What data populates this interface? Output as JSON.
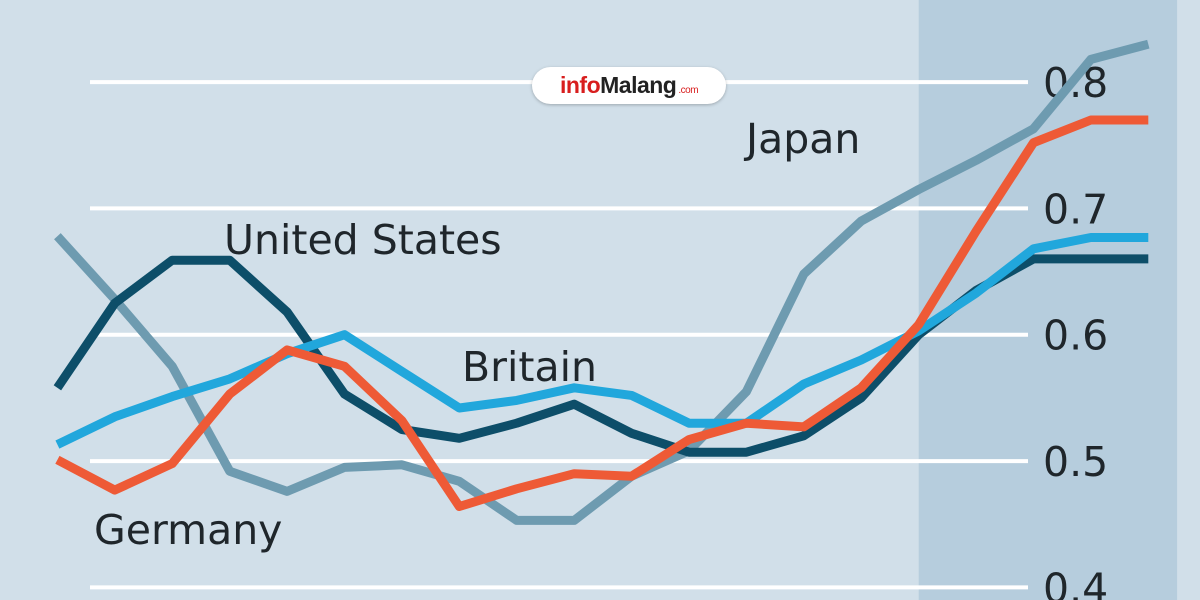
{
  "chart_data": {
    "type": "line",
    "x": [
      1,
      2,
      3,
      4,
      5,
      6,
      7,
      8,
      9,
      10,
      11,
      12,
      13,
      14,
      15,
      16,
      17,
      18,
      19,
      20
    ],
    "xlim": [
      0,
      20.9
    ],
    "ylim": [
      0.39,
      0.865
    ],
    "yticks": [
      0.4,
      0.5,
      0.6,
      0.7,
      0.8
    ],
    "ytick_labels": [
      "0.4",
      "0.5",
      "0.6",
      "0.7",
      "0.8"
    ],
    "grid": "horizontal",
    "shaded_x_range": [
      16,
      20.5
    ],
    "colors": {
      "background": "#d1dfe9",
      "shaded": "#b6cddd",
      "grid": "#ffffff",
      "Japan": "#6e9bb0",
      "United States": "#0d4e69",
      "Britain": "#21a7dc",
      "Germany": "#ee5a36"
    },
    "series": [
      {
        "name": "Japan",
        "values": [
          0.678,
          0.628,
          0.575,
          0.492,
          0.476,
          0.495,
          0.497,
          0.484,
          0.453,
          0.453,
          0.488,
          0.508,
          0.555,
          0.648,
          0.69,
          0.715,
          0.738,
          0.763,
          0.818,
          0.83
        ]
      },
      {
        "name": "United States",
        "values": [
          0.558,
          0.625,
          0.659,
          0.659,
          0.618,
          0.553,
          0.525,
          0.518,
          0.53,
          0.545,
          0.522,
          0.507,
          0.507,
          0.52,
          0.55,
          0.6,
          0.635,
          0.66,
          0.66,
          0.66
        ]
      },
      {
        "name": "Britain",
        "values": [
          0.513,
          0.535,
          0.551,
          0.565,
          0.585,
          0.6,
          0.571,
          0.542,
          0.548,
          0.558,
          0.552,
          0.53,
          0.53,
          0.561,
          0.58,
          0.603,
          0.633,
          0.668,
          0.677,
          0.677
        ]
      },
      {
        "name": "Germany",
        "values": [
          0.501,
          0.477,
          0.498,
          0.553,
          0.588,
          0.575,
          0.532,
          0.464,
          0.478,
          0.49,
          0.488,
          0.517,
          0.53,
          0.527,
          0.558,
          0.608,
          0.682,
          0.752,
          0.77,
          0.77
        ]
      }
    ],
    "labels": {
      "japan": "Japan",
      "united_states": "United States",
      "britain": "Britain",
      "germany": "Germany"
    }
  },
  "logo": {
    "info": "info",
    "rest": "Malang",
    "suffix": ".com"
  }
}
